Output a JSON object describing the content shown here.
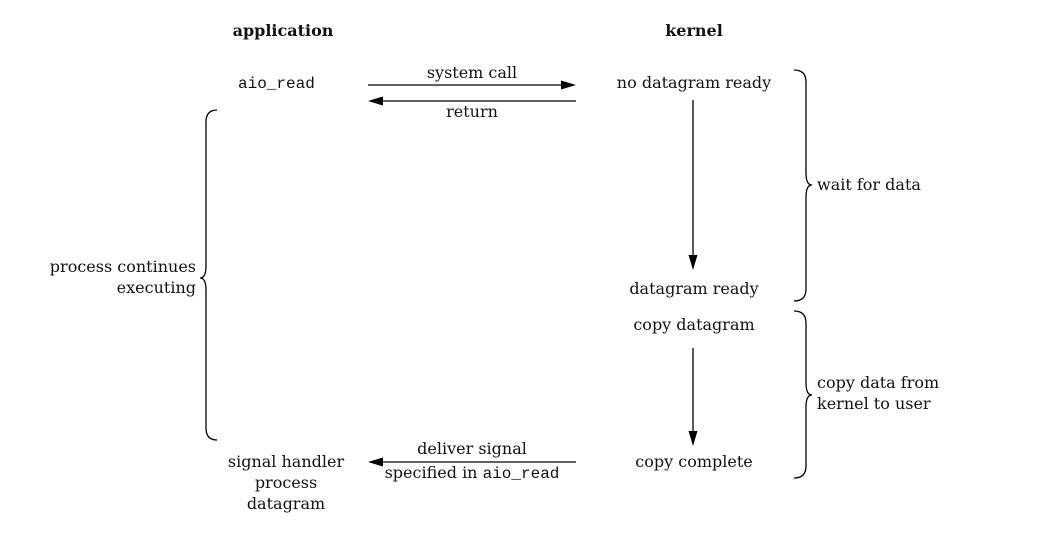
{
  "columns": {
    "application": "application",
    "kernel": "kernel"
  },
  "application": {
    "call": "aio_read",
    "handler": [
      "signal handler",
      "process",
      "datagram"
    ],
    "continues": [
      "process continues",
      "executing"
    ]
  },
  "arrows": {
    "system_call": "system call",
    "return": "return",
    "deliver_signal_line1": "deliver signal",
    "deliver_signal_prefix": "specified in ",
    "deliver_signal_code": "aio_read"
  },
  "kernel": {
    "no_datagram": "no datagram ready",
    "datagram_ready": "datagram ready",
    "copy_datagram": "copy datagram",
    "copy_complete": "copy complete"
  },
  "phases": {
    "wait": "wait for data",
    "copy": [
      "copy data from",
      "kernel to user"
    ]
  }
}
